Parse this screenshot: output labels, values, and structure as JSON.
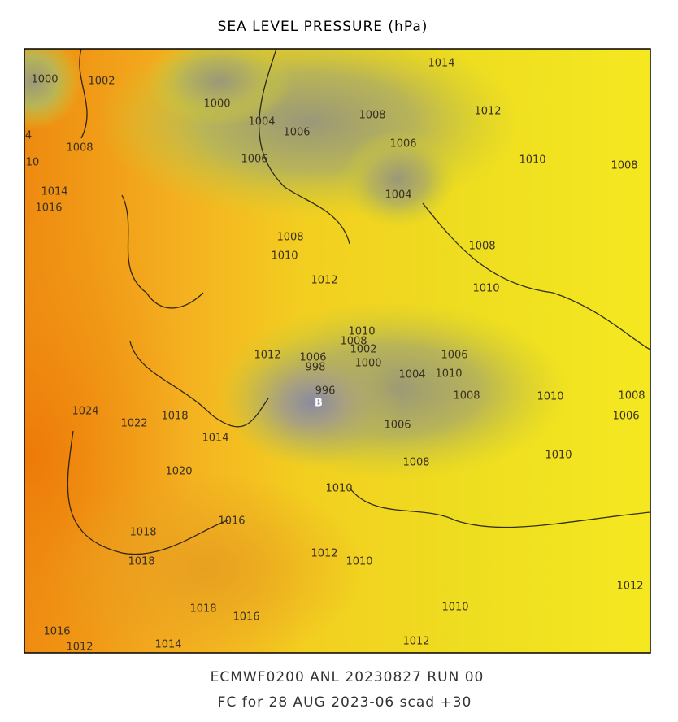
{
  "title": "SEA LEVEL PRESSURE (hPa)",
  "low_marker": "B",
  "contour_labels": [
    1000,
    1002,
    1000,
    1014,
    1008,
    1012,
    4,
    10,
    1004,
    1006,
    1008,
    1006,
    1006,
    1010,
    1008,
    1014,
    1016,
    1004,
    1008,
    1008,
    1010,
    1012,
    1010,
    1010,
    1008,
    1012,
    1006,
    998,
    1002,
    1000,
    1006,
    1004,
    1010,
    996,
    1008,
    1010,
    1008,
    1006,
    1024,
    1022,
    1018,
    1014,
    1006,
    1010,
    1020,
    1008,
    1010,
    1016,
    1018,
    1018,
    1012,
    1010,
    1012,
    1010,
    1018,
    1016,
    1016,
    1012,
    1014,
    1012
  ],
  "footer": [
    "ECMWF0200 ANL 20230827 RUN 00",
    "FC for 28 AUG 2023-06 scad +30"
  ]
}
